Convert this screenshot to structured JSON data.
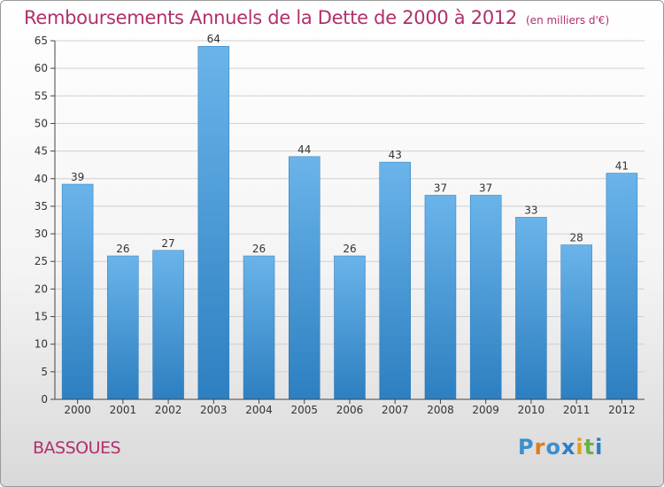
{
  "header": {
    "title": "Remboursements Annuels de la Dette de 2000 à 2012",
    "subtitle": "(en milliers d'€)"
  },
  "footer": {
    "commune": "BASSOUES",
    "logo_text": "Proxiti",
    "logo_letter_colors": [
      "#3a8fd0",
      "#e07a1c",
      "#3a8fd0",
      "#2a7fc8",
      "#e0a01c",
      "#6ab04c",
      "#2a7fc8"
    ]
  },
  "colors": {
    "bar_light": "#6ab4ea",
    "bar_dark": "#2d7fc0",
    "grid": "#d0d0d0",
    "axis": "#444444",
    "title": "#b0306b"
  },
  "chart_data": {
    "type": "bar",
    "categories": [
      "2000",
      "2001",
      "2002",
      "2003",
      "2004",
      "2005",
      "2006",
      "2007",
      "2008",
      "2009",
      "2010",
      "2011",
      "2012"
    ],
    "values": [
      39,
      26,
      27,
      64,
      26,
      44,
      26,
      43,
      37,
      37,
      33,
      28,
      41
    ],
    "yticks": [
      0,
      5,
      10,
      15,
      20,
      25,
      30,
      35,
      40,
      45,
      50,
      55,
      60,
      65
    ],
    "ylim": [
      0,
      65
    ],
    "grid": true,
    "legend": "none",
    "xlabel": "",
    "ylabel": ""
  }
}
